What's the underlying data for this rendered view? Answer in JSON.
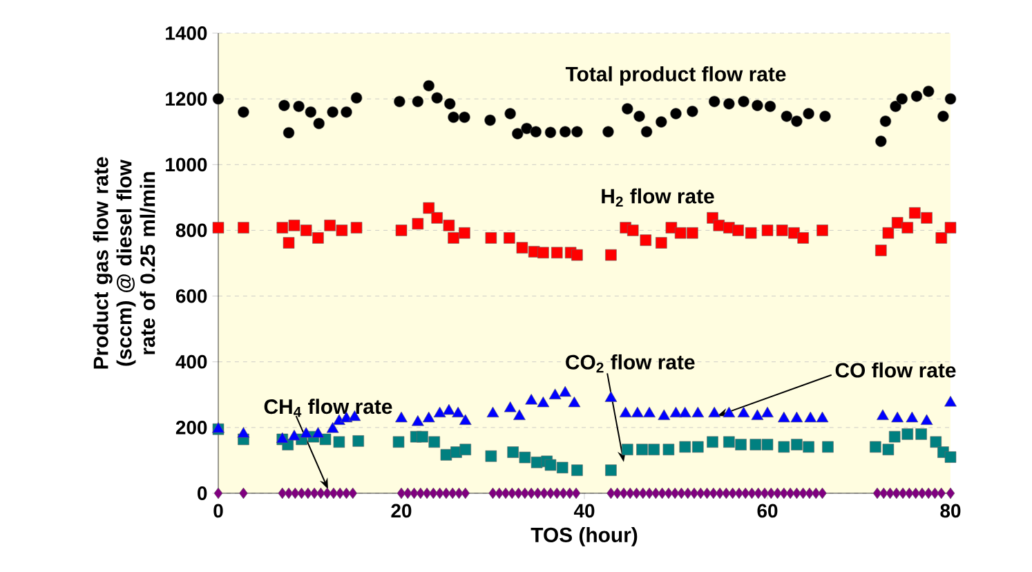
{
  "chart_data": {
    "type": "scatter",
    "xlabel": "TOS (hour)",
    "ylabel": "Product gas flow rate (sccm) @ diesel flow rate of 0.25 ml/min",
    "xlim": [
      0,
      80
    ],
    "ylim": [
      0,
      1400
    ],
    "xticks": [
      0,
      20,
      40,
      60,
      80
    ],
    "yticks": [
      0,
      200,
      400,
      600,
      800,
      1000,
      1200,
      1400
    ],
    "grid": "y",
    "series": [
      {
        "name": "Total product flow rate",
        "color": "#000000",
        "marker": "circle",
        "x": [
          0,
          2.75,
          7.2,
          7.7,
          8.8,
          10.1,
          11,
          12.5,
          14,
          15.1,
          19.8,
          21.8,
          23,
          23.9,
          25.3,
          25.7,
          26.9,
          29.7,
          31.9,
          32.7,
          33.7,
          34.7,
          36.3,
          37.9,
          39.2,
          42.6,
          44.7,
          46,
          46.8,
          48.4,
          50,
          51.8,
          54.2,
          55.8,
          57.4,
          58.9,
          60.3,
          62.1,
          63.2,
          64.5,
          66.3,
          72.4,
          72.9,
          74,
          74.7,
          76.3,
          77.6,
          79.2,
          80
        ],
        "values": [
          1200,
          1160,
          1180,
          1097,
          1177,
          1160,
          1125,
          1160,
          1160,
          1203,
          1192,
          1192,
          1240,
          1203,
          1185,
          1144,
          1144,
          1135,
          1155,
          1094,
          1110,
          1100,
          1098,
          1100,
          1100,
          1100,
          1170,
          1147,
          1100,
          1130,
          1155,
          1162,
          1192,
          1185,
          1192,
          1180,
          1177,
          1147,
          1132,
          1155,
          1147,
          1071,
          1132,
          1177,
          1200,
          1208,
          1223,
          1147,
          1200
        ]
      },
      {
        "name": "H$_{2}$ flow rate",
        "color": "#ff0000",
        "marker": "square",
        "x": [
          0,
          2.75,
          7,
          7.7,
          8.3,
          9.6,
          10.9,
          12.2,
          13.5,
          15.1,
          20,
          21.8,
          23,
          23.9,
          25.2,
          25.7,
          26.9,
          29.8,
          31.8,
          33.2,
          34.5,
          35.5,
          37,
          38.5,
          39.2,
          42.9,
          44.5,
          45.3,
          46.7,
          48.4,
          49.5,
          50.5,
          51.8,
          54,
          54.7,
          55.8,
          56.8,
          58.2,
          60,
          61.6,
          62.9,
          63.9,
          66,
          72.4,
          73.2,
          74.2,
          75.3,
          76.1,
          77.4,
          79,
          80
        ],
        "values": [
          808,
          808,
          808,
          762,
          815,
          800,
          777,
          815,
          800,
          808,
          800,
          820,
          868,
          838,
          815,
          777,
          792,
          777,
          777,
          747,
          735,
          732,
          732,
          732,
          725,
          725,
          808,
          800,
          770,
          762,
          808,
          792,
          792,
          838,
          815,
          808,
          800,
          792,
          800,
          800,
          792,
          777,
          800,
          739,
          792,
          823,
          808,
          853,
          838,
          777,
          808
        ]
      },
      {
        "name": "CO flow rate",
        "color": "#0000ff",
        "marker": "triangle",
        "x": [
          0,
          2.75,
          7,
          8.3,
          9.6,
          10.9,
          12.5,
          13.2,
          14,
          14.9,
          20,
          21.8,
          23,
          24.2,
          25.2,
          26.2,
          27,
          30,
          31.9,
          32.9,
          34.2,
          35.5,
          36.8,
          37.9,
          38.9,
          42.9,
          44.5,
          45.8,
          47.1,
          48.7,
          50,
          51,
          52.4,
          54.2,
          55.8,
          57.4,
          58.9,
          60,
          61.8,
          63.2,
          64.7,
          66,
          72.6,
          74.2,
          75.8,
          77.4,
          80
        ],
        "values": [
          195,
          180,
          164,
          172,
          180,
          180,
          195,
          219,
          227,
          231,
          227,
          216,
          227,
          242,
          250,
          242,
          219,
          242,
          258,
          234,
          281,
          273,
          297,
          305,
          273,
          289,
          242,
          242,
          242,
          234,
          242,
          242,
          242,
          242,
          242,
          242,
          234,
          242,
          227,
          227,
          227,
          227,
          234,
          227,
          227,
          219,
          275
        ]
      },
      {
        "name": "CO$_{2}$ flow rate",
        "color": "#008080",
        "marker": "square",
        "x": [
          0,
          2.75,
          7,
          7.6,
          9.1,
          10.4,
          11.7,
          13.2,
          15.3,
          19.7,
          21.6,
          22.3,
          23.6,
          24.9,
          26,
          27,
          29.8,
          32.2,
          33.5,
          34.8,
          35.9,
          36.3,
          37.6,
          39.2,
          42.9,
          44.7,
          46.3,
          47.6,
          49.2,
          51,
          52.4,
          54,
          55.8,
          57.1,
          58.7,
          60,
          61.8,
          63.2,
          64.5,
          66.6,
          71.8,
          73.2,
          73.9,
          75.3,
          76.8,
          78.4,
          79.2,
          80
        ],
        "values": [
          195,
          164,
          164,
          148,
          164,
          172,
          164,
          156,
          159,
          156,
          172,
          172,
          156,
          117,
          125,
          133,
          113,
          125,
          109,
          94,
          97,
          86,
          78,
          70,
          70,
          133,
          133,
          133,
          133,
          141,
          141,
          156,
          156,
          148,
          148,
          148,
          141,
          148,
          141,
          141,
          141,
          133,
          172,
          180,
          180,
          156,
          125,
          110
        ]
      },
      {
        "name": "CH$_{4}$ flow rate",
        "color": "#800080",
        "marker": "diamond",
        "x": [
          0,
          2.75,
          7,
          7.7,
          8.4,
          9.1,
          9.8,
          10.5,
          11.2,
          11.9,
          12.6,
          13.3,
          14,
          14.7,
          20,
          20.7,
          21.4,
          22.1,
          22.8,
          23.5,
          24.2,
          24.9,
          25.6,
          26.3,
          27,
          30,
          30.7,
          31.4,
          32.1,
          32.8,
          33.5,
          34.2,
          34.9,
          35.6,
          36.3,
          37,
          37.7,
          38.4,
          39.1,
          42.9,
          43.6,
          44.3,
          45,
          45.7,
          46.4,
          47.1,
          47.8,
          48.5,
          49.2,
          49.9,
          50.6,
          51.3,
          52,
          52.7,
          53.4,
          54.1,
          54.8,
          55.5,
          56.2,
          56.9,
          57.6,
          58.3,
          59,
          59.7,
          60.4,
          61.1,
          61.8,
          62.5,
          63.2,
          63.9,
          64.6,
          65.3,
          66,
          72,
          72.7,
          73.4,
          74.1,
          74.8,
          75.5,
          76.2,
          76.9,
          77.6,
          78.3,
          79,
          80
        ],
        "values": [
          0,
          0,
          0,
          0,
          0,
          0,
          0,
          0,
          0,
          0,
          0,
          0,
          0,
          0,
          0,
          0,
          0,
          0,
          0,
          0,
          0,
          0,
          0,
          0,
          0,
          0,
          0,
          0,
          0,
          0,
          0,
          0,
          0,
          0,
          0,
          0,
          0,
          0,
          0,
          0,
          0,
          0,
          0,
          0,
          0,
          0,
          0,
          0,
          0,
          0,
          0,
          0,
          0,
          0,
          0,
          0,
          0,
          0,
          0,
          0,
          0,
          0,
          0,
          0,
          0,
          0,
          0,
          0,
          0,
          0,
          0,
          0,
          0,
          0,
          0,
          0,
          0,
          0,
          0,
          0,
          0,
          0,
          0,
          0,
          0
        ]
      }
    ]
  }
}
